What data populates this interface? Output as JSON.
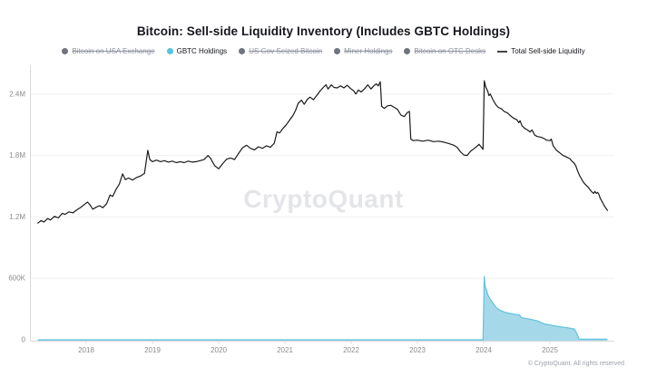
{
  "header": {
    "title": "Bitcoin: Sell-side Liquidity Inventory (Includes GBTC Holdings)"
  },
  "watermark": {
    "text": "CryptoQuant"
  },
  "footer": {
    "copyright": "© CryptoQuant. All rights reserved"
  },
  "colors": {
    "total_line": "#1a1a1a",
    "gbtc_stroke": "#5fc3de",
    "gbtc_fill": "#a5d9ea",
    "legend_dot_gray": "#6f7480",
    "legend_dot_cyan": "#54c3e0",
    "disabled_text": "#8d93a0",
    "axis_line": "#d9d9d9",
    "grid_line": "#f0f0f0",
    "tick_text": "#8c8c8c"
  },
  "legend": {
    "items": [
      {
        "slug": "usa-exchange",
        "label": "Bitcoin on USA Exchange",
        "marker": "dot",
        "color": "#6f7480",
        "disabled": true
      },
      {
        "slug": "gbtc-holdings",
        "label": "GBTC Holdings",
        "marker": "dot",
        "color": "#54c3e0",
        "disabled": false
      },
      {
        "slug": "us-gov-seized",
        "label": "US Gov Seized Bitcoin",
        "marker": "dot",
        "color": "#6f7480",
        "disabled": true
      },
      {
        "slug": "miner-holdings",
        "label": "Miner Holdings",
        "marker": "dot",
        "color": "#6f7480",
        "disabled": true
      },
      {
        "slug": "otc-desks",
        "label": "Bitcoin on OTC Desks",
        "marker": "dot",
        "color": "#6f7480",
        "disabled": true
      },
      {
        "slug": "total-sell-side",
        "label": "Total Sell-side Liquidity",
        "marker": "line",
        "color": "#444444",
        "disabled": false
      }
    ]
  },
  "chart_data": {
    "type": "line",
    "title": "Bitcoin: Sell-side Liquidity Inventory (Includes GBTC Holdings)",
    "unit": "BTC",
    "grid": "horizontal-only",
    "legend_position": "top",
    "x_axis": {
      "ticks": [
        2018,
        2019,
        2020,
        2021,
        2022,
        2023,
        2024,
        2025
      ],
      "range": [
        2017.15,
        2025.97
      ]
    },
    "y_axis": {
      "tick_labels": [
        "0",
        "600K",
        "1.2M",
        "1.8M",
        "2.4M"
      ],
      "tick_values": [
        0,
        600000,
        1200000,
        1800000,
        2400000
      ],
      "range": [
        0,
        2700000
      ]
    },
    "series": [
      {
        "name": "Total Sell-side Liquidity",
        "type": "line",
        "color": "#1a1a1a",
        "points": [
          [
            2017.27,
            1140000
          ],
          [
            2017.32,
            1165000
          ],
          [
            2017.36,
            1150000
          ],
          [
            2017.42,
            1185000
          ],
          [
            2017.46,
            1170000
          ],
          [
            2017.52,
            1205000
          ],
          [
            2017.58,
            1190000
          ],
          [
            2017.64,
            1235000
          ],
          [
            2017.68,
            1225000
          ],
          [
            2017.74,
            1250000
          ],
          [
            2017.8,
            1240000
          ],
          [
            2017.86,
            1270000
          ],
          [
            2017.92,
            1295000
          ],
          [
            2017.97,
            1320000
          ],
          [
            2018.02,
            1345000
          ],
          [
            2018.06,
            1315000
          ],
          [
            2018.1,
            1275000
          ],
          [
            2018.15,
            1295000
          ],
          [
            2018.2,
            1310000
          ],
          [
            2018.25,
            1290000
          ],
          [
            2018.31,
            1330000
          ],
          [
            2018.36,
            1415000
          ],
          [
            2018.4,
            1400000
          ],
          [
            2018.45,
            1470000
          ],
          [
            2018.5,
            1520000
          ],
          [
            2018.55,
            1620000
          ],
          [
            2018.59,
            1565000
          ],
          [
            2018.64,
            1580000
          ],
          [
            2018.7,
            1560000
          ],
          [
            2018.76,
            1585000
          ],
          [
            2018.82,
            1600000
          ],
          [
            2018.88,
            1625000
          ],
          [
            2018.93,
            1850000
          ],
          [
            2018.96,
            1760000
          ],
          [
            2019,
            1740000
          ],
          [
            2019.06,
            1755000
          ],
          [
            2019.12,
            1740000
          ],
          [
            2019.18,
            1750000
          ],
          [
            2019.24,
            1735000
          ],
          [
            2019.3,
            1745000
          ],
          [
            2019.36,
            1730000
          ],
          [
            2019.42,
            1740000
          ],
          [
            2019.48,
            1730000
          ],
          [
            2019.54,
            1745000
          ],
          [
            2019.6,
            1735000
          ],
          [
            2019.66,
            1740000
          ],
          [
            2019.72,
            1750000
          ],
          [
            2019.78,
            1760000
          ],
          [
            2019.84,
            1800000
          ],
          [
            2019.88,
            1770000
          ],
          [
            2019.94,
            1700000
          ],
          [
            2020,
            1670000
          ],
          [
            2020.06,
            1720000
          ],
          [
            2020.12,
            1765000
          ],
          [
            2020.18,
            1775000
          ],
          [
            2020.24,
            1760000
          ],
          [
            2020.3,
            1820000
          ],
          [
            2020.36,
            1875000
          ],
          [
            2020.42,
            1900000
          ],
          [
            2020.48,
            1870000
          ],
          [
            2020.54,
            1855000
          ],
          [
            2020.6,
            1885000
          ],
          [
            2020.66,
            1870000
          ],
          [
            2020.72,
            1895000
          ],
          [
            2020.78,
            1880000
          ],
          [
            2020.84,
            1920000
          ],
          [
            2020.88,
            2030000
          ],
          [
            2020.92,
            2020000
          ],
          [
            2020.97,
            2065000
          ],
          [
            2021.02,
            2100000
          ],
          [
            2021.07,
            2145000
          ],
          [
            2021.12,
            2190000
          ],
          [
            2021.16,
            2240000
          ],
          [
            2021.2,
            2310000
          ],
          [
            2021.25,
            2340000
          ],
          [
            2021.29,
            2300000
          ],
          [
            2021.34,
            2350000
          ],
          [
            2021.38,
            2370000
          ],
          [
            2021.43,
            2345000
          ],
          [
            2021.48,
            2385000
          ],
          [
            2021.53,
            2430000
          ],
          [
            2021.58,
            2465000
          ],
          [
            2021.62,
            2490000
          ],
          [
            2021.65,
            2450000
          ],
          [
            2021.7,
            2490000
          ],
          [
            2021.74,
            2465000
          ],
          [
            2021.79,
            2460000
          ],
          [
            2021.84,
            2480000
          ],
          [
            2021.89,
            2460000
          ],
          [
            2021.94,
            2485000
          ],
          [
            2022,
            2450000
          ],
          [
            2022.04,
            2430000
          ],
          [
            2022.07,
            2400000
          ],
          [
            2022.11,
            2440000
          ],
          [
            2022.15,
            2420000
          ],
          [
            2022.2,
            2450000
          ],
          [
            2022.25,
            2490000
          ],
          [
            2022.3,
            2450000
          ],
          [
            2022.34,
            2480000
          ],
          [
            2022.38,
            2500000
          ],
          [
            2022.41,
            2480000
          ],
          [
            2022.44,
            2520000
          ],
          [
            2022.46,
            2280000
          ],
          [
            2022.5,
            2260000
          ],
          [
            2022.55,
            2285000
          ],
          [
            2022.6,
            2290000
          ],
          [
            2022.65,
            2270000
          ],
          [
            2022.7,
            2250000
          ],
          [
            2022.75,
            2195000
          ],
          [
            2022.8,
            2180000
          ],
          [
            2022.85,
            2220000
          ],
          [
            2022.88,
            2230000
          ],
          [
            2022.9,
            1960000
          ],
          [
            2022.94,
            1945000
          ],
          [
            2023,
            1950000
          ],
          [
            2023.08,
            1940000
          ],
          [
            2023.16,
            1950000
          ],
          [
            2023.24,
            1935000
          ],
          [
            2023.32,
            1940000
          ],
          [
            2023.4,
            1930000
          ],
          [
            2023.48,
            1915000
          ],
          [
            2023.55,
            1900000
          ],
          [
            2023.6,
            1880000
          ],
          [
            2023.65,
            1835000
          ],
          [
            2023.7,
            1805000
          ],
          [
            2023.75,
            1800000
          ],
          [
            2023.8,
            1840000
          ],
          [
            2023.85,
            1865000
          ],
          [
            2023.9,
            1890000
          ],
          [
            2023.93,
            1910000
          ],
          [
            2023.96,
            1885000
          ],
          [
            2023.99,
            1860000
          ],
          [
            2024.01,
            2530000
          ],
          [
            2024.03,
            2470000
          ],
          [
            2024.06,
            2430000
          ],
          [
            2024.08,
            2385000
          ],
          [
            2024.1,
            2400000
          ],
          [
            2024.14,
            2345000
          ],
          [
            2024.18,
            2300000
          ],
          [
            2024.22,
            2270000
          ],
          [
            2024.27,
            2255000
          ],
          [
            2024.31,
            2230000
          ],
          [
            2024.36,
            2215000
          ],
          [
            2024.4,
            2190000
          ],
          [
            2024.45,
            2165000
          ],
          [
            2024.5,
            2150000
          ],
          [
            2024.53,
            2120000
          ],
          [
            2024.55,
            2140000
          ],
          [
            2024.58,
            2090000
          ],
          [
            2024.62,
            2065000
          ],
          [
            2024.66,
            2050000
          ],
          [
            2024.7,
            2030000
          ],
          [
            2024.73,
            2050000
          ],
          [
            2024.77,
            2000000
          ],
          [
            2024.81,
            1985000
          ],
          [
            2024.86,
            1980000
          ],
          [
            2024.9,
            1970000
          ],
          [
            2024.95,
            1950000
          ],
          [
            2025,
            1945000
          ],
          [
            2025.02,
            1960000
          ],
          [
            2025.05,
            1895000
          ],
          [
            2025.1,
            1850000
          ],
          [
            2025.15,
            1825000
          ],
          [
            2025.2,
            1800000
          ],
          [
            2025.25,
            1785000
          ],
          [
            2025.3,
            1770000
          ],
          [
            2025.33,
            1745000
          ],
          [
            2025.36,
            1730000
          ],
          [
            2025.39,
            1700000
          ],
          [
            2025.42,
            1645000
          ],
          [
            2025.45,
            1600000
          ],
          [
            2025.47,
            1580000
          ],
          [
            2025.5,
            1545000
          ],
          [
            2025.53,
            1520000
          ],
          [
            2025.56,
            1500000
          ],
          [
            2025.58,
            1490000
          ],
          [
            2025.6,
            1470000
          ],
          [
            2025.62,
            1455000
          ],
          [
            2025.64,
            1440000
          ],
          [
            2025.66,
            1430000
          ],
          [
            2025.68,
            1450000
          ],
          [
            2025.7,
            1430000
          ],
          [
            2025.72,
            1440000
          ],
          [
            2025.74,
            1420000
          ],
          [
            2025.76,
            1380000
          ],
          [
            2025.78,
            1360000
          ],
          [
            2025.8,
            1335000
          ],
          [
            2025.82,
            1310000
          ],
          [
            2025.84,
            1290000
          ],
          [
            2025.87,
            1265000
          ]
        ]
      },
      {
        "name": "GBTC Holdings",
        "type": "area",
        "stroke": "#5fc3de",
        "fill": "#a5d9ea",
        "points": [
          [
            2017.27,
            0
          ],
          [
            2023.99,
            0
          ],
          [
            2024.01,
            622000
          ],
          [
            2024.02,
            533000
          ],
          [
            2024.03,
            505000
          ],
          [
            2024.05,
            475000
          ],
          [
            2024.06,
            445000
          ],
          [
            2024.08,
            420000
          ],
          [
            2024.1,
            395000
          ],
          [
            2024.13,
            370000
          ],
          [
            2024.16,
            340000
          ],
          [
            2024.19,
            315000
          ],
          [
            2024.22,
            298000
          ],
          [
            2024.26,
            285000
          ],
          [
            2024.31,
            272000
          ],
          [
            2024.36,
            262000
          ],
          [
            2024.42,
            255000
          ],
          [
            2024.48,
            248000
          ],
          [
            2024.54,
            243000
          ],
          [
            2024.56,
            222000
          ],
          [
            2024.6,
            212000
          ],
          [
            2024.67,
            205000
          ],
          [
            2024.74,
            196000
          ],
          [
            2024.81,
            185000
          ],
          [
            2024.86,
            170000
          ],
          [
            2024.92,
            155000
          ],
          [
            2024.98,
            148000
          ],
          [
            2025.04,
            140000
          ],
          [
            2025.1,
            133000
          ],
          [
            2025.16,
            127000
          ],
          [
            2025.22,
            121000
          ],
          [
            2025.28,
            116000
          ],
          [
            2025.33,
            110000
          ],
          [
            2025.37,
            104000
          ],
          [
            2025.4,
            70000
          ],
          [
            2025.42,
            40000
          ],
          [
            2025.44,
            8000
          ],
          [
            2025.5,
            5000
          ],
          [
            2025.87,
            5000
          ]
        ]
      }
    ]
  }
}
